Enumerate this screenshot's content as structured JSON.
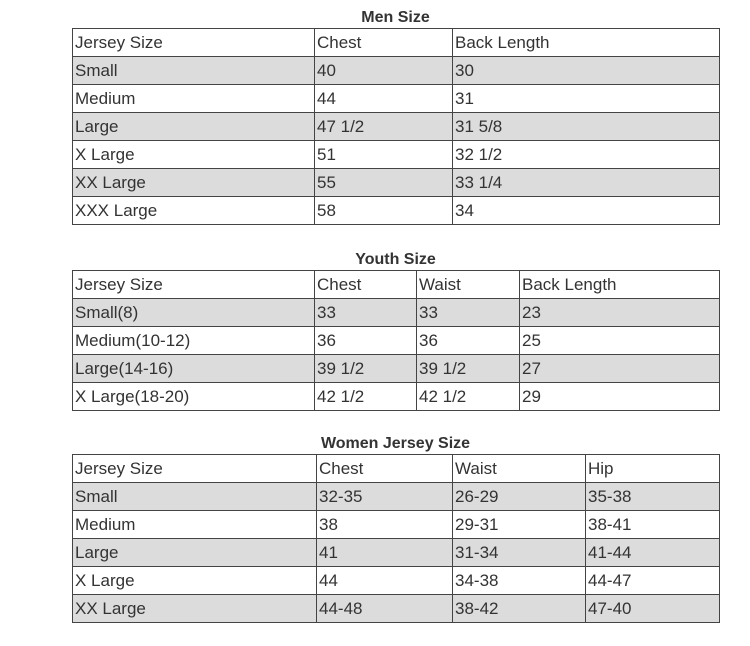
{
  "tables": [
    {
      "title": "Men Size",
      "header": [
        "Jersey Size",
        "Chest",
        "Back Length"
      ],
      "rows": [
        [
          "Small",
          "40",
          "30"
        ],
        [
          "Medium",
          "44",
          "31"
        ],
        [
          "Large",
          "47 1/2",
          "31 5/8"
        ],
        [
          "X Large",
          "51",
          "32 1/2"
        ],
        [
          "XX Large",
          "55",
          "33 1/4"
        ],
        [
          "XXX Large",
          "58",
          "34"
        ]
      ]
    },
    {
      "title": "Youth Size",
      "header": [
        "Jersey Size",
        "Chest",
        "Waist",
        "Back Length"
      ],
      "rows": [
        [
          "Small(8)",
          "33",
          "33",
          "23"
        ],
        [
          "Medium(10-12)",
          "36",
          "36",
          "25"
        ],
        [
          "Large(14-16)",
          "39 1/2",
          "39 1/2",
          "27"
        ],
        [
          "X Large(18-20)",
          "42 1/2",
          "42 1/2",
          "29"
        ]
      ]
    },
    {
      "title": "Women Jersey Size",
      "header": [
        "Jersey Size",
        "Chest",
        "Waist",
        "Hip"
      ],
      "rows": [
        [
          "Small",
          "32-35",
          "26-29",
          "35-38"
        ],
        [
          "Medium",
          "38",
          "29-31",
          "38-41"
        ],
        [
          "Large",
          "41",
          "31-34",
          "41-44"
        ],
        [
          "X Large",
          "44",
          "34-38",
          "44-47"
        ],
        [
          "XX Large",
          "44-48",
          "38-42",
          "47-40"
        ]
      ]
    }
  ]
}
